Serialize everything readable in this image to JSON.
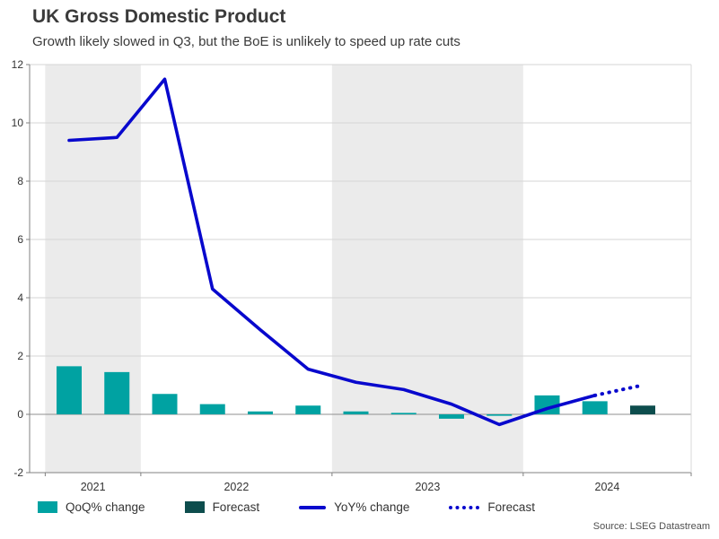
{
  "header": {
    "title": "UK Gross Domestic Product",
    "subtitle": "Growth likely slowed in Q3, but the BoE is unlikely to speed up rate cuts"
  },
  "chart_data": {
    "type": "bar+line",
    "quarters": [
      "2021-Q3",
      "2021-Q4",
      "2022-Q1",
      "2022-Q2",
      "2022-Q3",
      "2022-Q4",
      "2023-Q1",
      "2023-Q2",
      "2023-Q3",
      "2023-Q4",
      "2024-Q1",
      "2024-Q2",
      "2024-Q3"
    ],
    "series": [
      {
        "name": "QoQ% change",
        "type": "bar",
        "style": "solid",
        "color": "#00a2a2",
        "values": [
          1.65,
          1.45,
          0.7,
          0.35,
          0.1,
          0.3,
          0.1,
          0.05,
          -0.15,
          -0.05,
          0.65,
          0.45,
          null
        ]
      },
      {
        "name": "Forecast",
        "type": "bar",
        "style": "solid",
        "color": "#0d4d4d",
        "values": [
          null,
          null,
          null,
          null,
          null,
          null,
          null,
          null,
          null,
          null,
          null,
          null,
          0.3
        ]
      },
      {
        "name": "YoY% change",
        "type": "line",
        "style": "solid",
        "color": "#0808cd",
        "values": [
          9.4,
          9.5,
          11.5,
          4.3,
          2.9,
          1.55,
          1.1,
          0.85,
          0.35,
          -0.35,
          0.2,
          0.65,
          null
        ]
      },
      {
        "name": "Forecast",
        "type": "line",
        "style": "dotted",
        "color": "#0808cd",
        "values": [
          null,
          null,
          null,
          null,
          null,
          null,
          null,
          null,
          null,
          null,
          null,
          0.65,
          1.0
        ]
      }
    ],
    "ylim": [
      -2,
      12
    ],
    "yticks": [
      -2,
      0,
      2,
      4,
      6,
      8,
      10,
      12
    ],
    "year_labels": [
      "2021",
      "2022",
      "2023",
      "2024"
    ],
    "shaded_years": [
      "2021",
      "2023"
    ],
    "band_color": "#ebebeb",
    "grid_on": true,
    "legend_position": "bottom"
  },
  "legend": {
    "items": [
      {
        "label": "QoQ% change",
        "style": "bar",
        "color": "#00a2a2"
      },
      {
        "label": "Forecast",
        "style": "bar",
        "color": "#0d4d4d"
      },
      {
        "label": "YoY% change",
        "style": "line",
        "color": "#0808cd"
      },
      {
        "label": "Forecast",
        "style": "dotted",
        "color": "#0808cd"
      }
    ]
  },
  "source": "Source: LSEG Datastream"
}
